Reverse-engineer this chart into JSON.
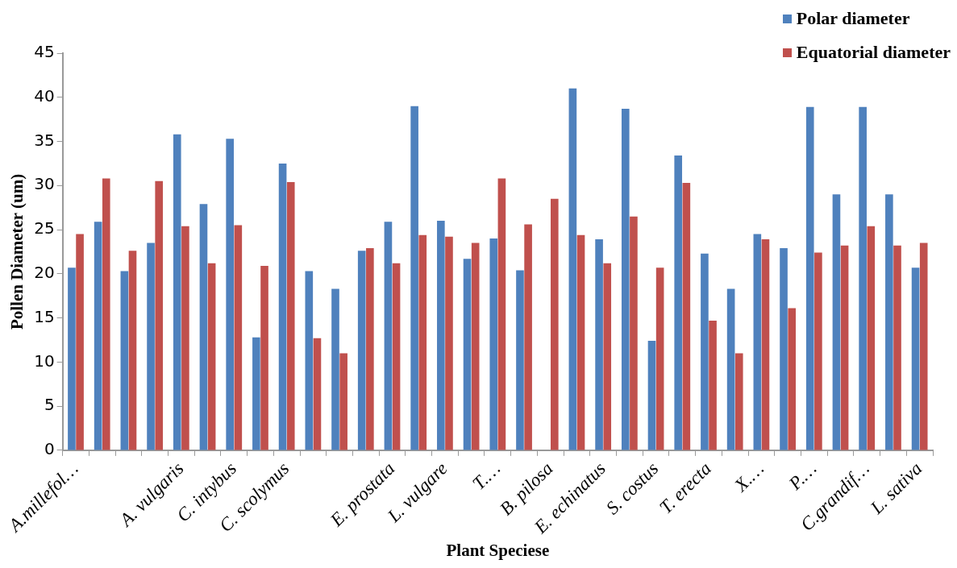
{
  "chart_data": {
    "type": "bar",
    "xlabel": "Plant Speciese",
    "ylabel": "Pollen Diameter (um)",
    "categories": [
      "A.millefol…",
      null,
      null,
      null,
      "A. vulgaris",
      null,
      "C. intybus",
      null,
      "C. scolymus",
      null,
      null,
      null,
      "E. prostata",
      null,
      "L. vulgare",
      null,
      "T.…",
      null,
      "B. pilosa",
      null,
      "E. echinatus",
      null,
      "S. costus",
      null,
      "T. erecta",
      null,
      "X.…",
      null,
      "P.…",
      null,
      "C.grandif…",
      null,
      "L. sativa"
    ],
    "series": [
      {
        "name": "Polar diameter",
        "color": "#4f81bd",
        "values": [
          20.7,
          25.9,
          20.3,
          23.5,
          35.8,
          27.9,
          35.3,
          12.8,
          32.5,
          20.3,
          18.3,
          22.6,
          25.9,
          39.0,
          26.0,
          21.7,
          24.0,
          20.4,
          0,
          41.0,
          23.9,
          38.7,
          12.4,
          33.4,
          22.3,
          18.3,
          24.5,
          22.9,
          38.9,
          29.0,
          38.9,
          29.0,
          20.7
        ]
      },
      {
        "name": "Equatorial diameter",
        "color": "#c0504d",
        "values": [
          24.5,
          30.8,
          22.6,
          30.5,
          25.4,
          21.2,
          25.5,
          20.9,
          30.4,
          12.7,
          11.0,
          22.9,
          21.2,
          24.4,
          24.2,
          23.5,
          30.8,
          25.6,
          28.5,
          24.4,
          21.2,
          26.5,
          20.7,
          30.3,
          14.7,
          11.0,
          23.9,
          16.1,
          22.4,
          23.2,
          25.4,
          23.2,
          23.5
        ]
      }
    ],
    "ylim": [
      0,
      45
    ],
    "yticks": [
      0,
      5,
      10,
      15,
      20,
      25,
      30,
      35,
      40,
      45
    ],
    "grid": false,
    "legend": "top right"
  }
}
